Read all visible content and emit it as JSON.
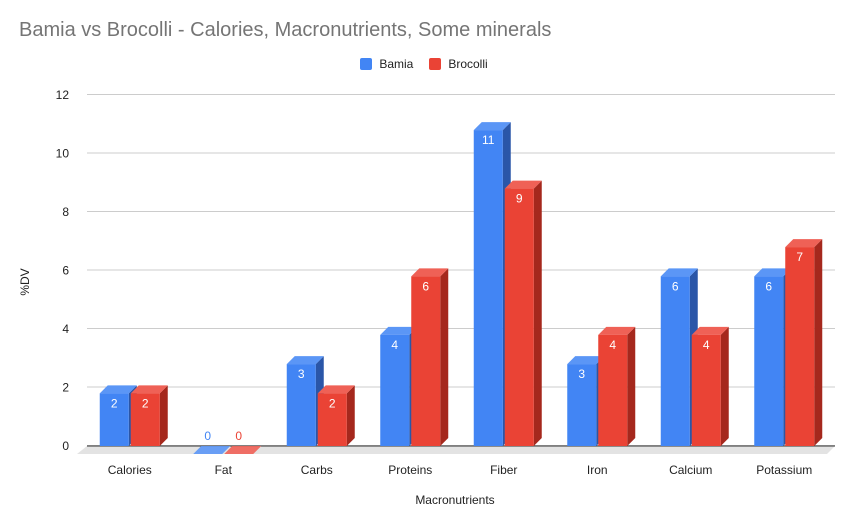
{
  "chart_data": {
    "type": "bar",
    "title": "Bamia vs Brocolli - Calories, Macronutrients, Some minerals",
    "xlabel": "Macronutrients",
    "ylabel": "%DV",
    "categories": [
      "Calories",
      "Fat",
      "Carbs",
      "Proteins",
      "Fiber",
      "Iron",
      "Calcium",
      "Potassium"
    ],
    "series": [
      {
        "name": "Bamia",
        "color": "#4285f4",
        "side_color": "#2a56a8",
        "top_color": "#5b96f6",
        "values": [
          1.8,
          0,
          2.8,
          3.8,
          10.8,
          2.8,
          5.8,
          5.8
        ],
        "labels": [
          "2",
          "0",
          "3",
          "4",
          "11",
          "3",
          "6",
          "6"
        ]
      },
      {
        "name": "Brocolli",
        "color": "#ea4335",
        "side_color": "#a5281d",
        "top_color": "#ef6156",
        "values": [
          1.8,
          0,
          1.8,
          5.8,
          8.8,
          3.8,
          3.8,
          6.8
        ],
        "labels": [
          "2",
          "0",
          "2",
          "6",
          "9",
          "4",
          "4",
          "7"
        ]
      }
    ],
    "ylim": [
      0,
      12
    ],
    "yticks": [
      0,
      2,
      4,
      6,
      8,
      10,
      12
    ],
    "grid": true,
    "legend_position": "top-center",
    "style": "3d"
  }
}
